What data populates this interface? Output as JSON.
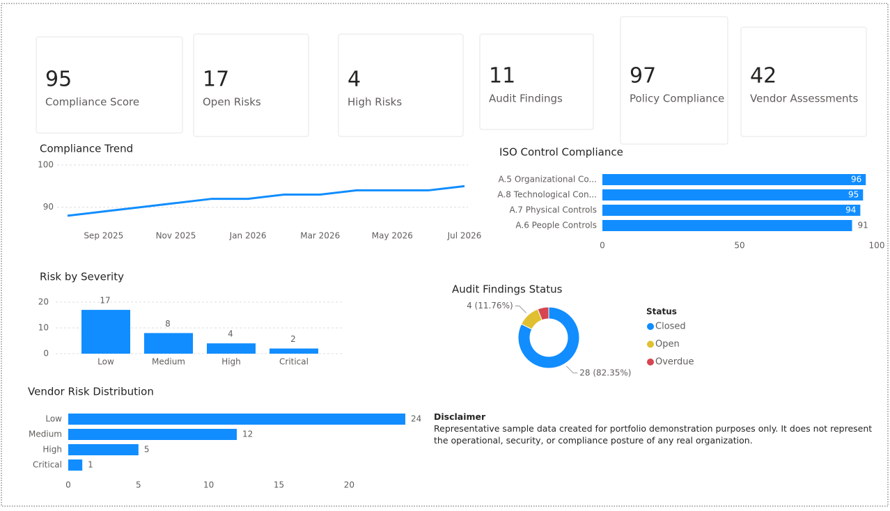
{
  "cards": [
    {
      "value": 95,
      "label": "Compliance Score"
    },
    {
      "value": 17,
      "label": "Open Risks"
    },
    {
      "value": 4,
      "label": "High Risks"
    },
    {
      "value": 11,
      "label": "Audit Findings"
    },
    {
      "value": 97,
      "label": "Policy Compliance"
    },
    {
      "value": 42,
      "label": "Vendor Assessments"
    }
  ],
  "chart_data": [
    {
      "type": "line",
      "title": "Compliance Trend",
      "categories": [
        null,
        "Sep 2025",
        null,
        "Nov 2025",
        null,
        "Jan 2026",
        null,
        "Mar 2026",
        null,
        "May 2026",
        null,
        "Jul 2026"
      ],
      "values": [
        88,
        89,
        90,
        91,
        92,
        92,
        93,
        93,
        94,
        94,
        94,
        95
      ],
      "color": "#118dff",
      "ylim": [
        86,
        100
      ],
      "yticks": [
        90,
        100
      ],
      "grid": true
    },
    {
      "type": "hbar",
      "title": "ISO Control Compliance",
      "categories": [
        "A.5 Organizational Co...",
        "A.8 Technological Con...",
        "A.7 Physical Controls",
        "A.6 People Controls"
      ],
      "values": [
        96,
        95,
        94,
        91
      ],
      "color": "#118dff",
      "xlim": [
        0,
        100
      ],
      "xticks": [
        0,
        50,
        100
      ]
    },
    {
      "type": "bar",
      "title": "Risk by Severity",
      "categories": [
        "Low",
        "Medium",
        "High",
        "Critical"
      ],
      "values": [
        17,
        8,
        4,
        2
      ],
      "color": "#118dff",
      "ylim": [
        0,
        20
      ],
      "yticks": [
        0,
        10,
        20
      ],
      "grid": true
    },
    {
      "type": "donut",
      "title": "Audit Findings Status",
      "legend_title": "Status",
      "categories": [
        "Closed",
        "Open",
        "Overdue"
      ],
      "values": [
        28,
        4,
        2
      ],
      "value_labels": [
        "28 (82.35%)",
        "4 (11.76%)",
        null
      ],
      "colors": [
        "#118dff",
        "#e0c030",
        "#d64550"
      ],
      "legend": "right"
    },
    {
      "type": "hbar",
      "title": "Vendor Risk Distribution",
      "categories": [
        "Low",
        "Medium",
        "High",
        "Critical"
      ],
      "values": [
        24,
        12,
        5,
        1
      ],
      "color": "#118dff",
      "xlim": [
        0,
        24
      ],
      "xticks": [
        0,
        5,
        10,
        15,
        20
      ]
    }
  ],
  "disclaimer": {
    "title": "Disclaimer",
    "text": "Representative sample data created for portfolio demonstration purposes only. It does not represent the operational, security, or compliance posture of any real organization."
  }
}
